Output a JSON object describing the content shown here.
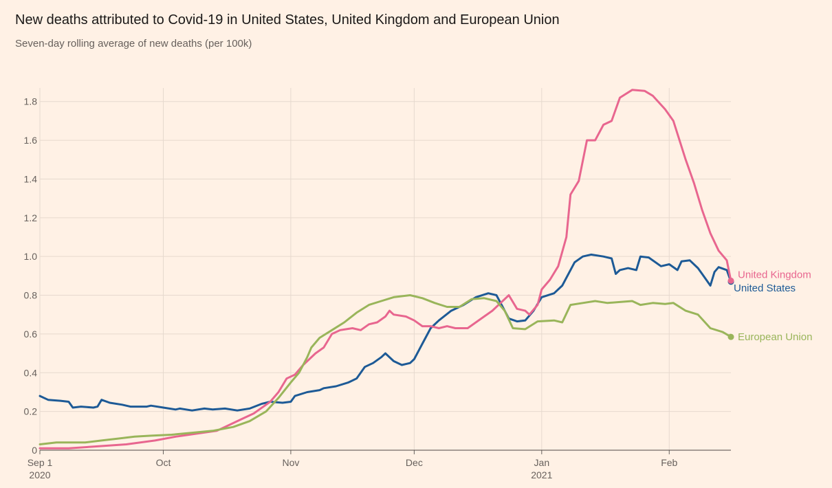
{
  "title": "New deaths attributed to Covid-19 in United States, United Kingdom and European Union",
  "subtitle": "Seven-day rolling average of new deaths (per 100k)",
  "chart_data": {
    "type": "line",
    "x_start": "2020-09-01",
    "x_end": "2021-02-16",
    "ylim": [
      0,
      1.87
    ],
    "yticks": [
      0,
      0.2,
      0.4,
      0.6,
      0.8,
      1.0,
      1.2,
      1.4,
      1.6,
      1.8
    ],
    "ytick_labels": [
      "0",
      "0.2",
      "0.4",
      "0.6",
      "0.8",
      "1.0",
      "1.2",
      "1.4",
      "1.6",
      "1.8"
    ],
    "xticks": [
      {
        "date": "2020-09-01",
        "label": "Sep 1",
        "sublabel": "2020"
      },
      {
        "date": "2020-10-01",
        "label": "Oct",
        "sublabel": ""
      },
      {
        "date": "2020-11-01",
        "label": "Nov",
        "sublabel": ""
      },
      {
        "date": "2020-12-01",
        "label": "Dec",
        "sublabel": ""
      },
      {
        "date": "2021-01-01",
        "label": "Jan",
        "sublabel": "2021"
      },
      {
        "date": "2021-02-01",
        "label": "Feb",
        "sublabel": ""
      }
    ],
    "grid": true,
    "colors": {
      "United States": "#1d5a96",
      "United Kingdom": "#e8668f",
      "European Union": "#99b55a"
    },
    "series": [
      {
        "name": "United States",
        "points": [
          [
            "2020-09-01",
            0.28
          ],
          [
            "2020-09-03",
            0.26
          ],
          [
            "2020-09-06",
            0.255
          ],
          [
            "2020-09-08",
            0.25
          ],
          [
            "2020-09-09",
            0.22
          ],
          [
            "2020-09-11",
            0.225
          ],
          [
            "2020-09-14",
            0.22
          ],
          [
            "2020-09-15",
            0.225
          ],
          [
            "2020-09-16",
            0.26
          ],
          [
            "2020-09-18",
            0.245
          ],
          [
            "2020-09-21",
            0.235
          ],
          [
            "2020-09-23",
            0.225
          ],
          [
            "2020-09-27",
            0.225
          ],
          [
            "2020-09-28",
            0.23
          ],
          [
            "2020-10-01",
            0.22
          ],
          [
            "2020-10-04",
            0.21
          ],
          [
            "2020-10-05",
            0.215
          ],
          [
            "2020-10-08",
            0.205
          ],
          [
            "2020-10-11",
            0.215
          ],
          [
            "2020-10-13",
            0.21
          ],
          [
            "2020-10-16",
            0.215
          ],
          [
            "2020-10-19",
            0.205
          ],
          [
            "2020-10-22",
            0.215
          ],
          [
            "2020-10-25",
            0.24
          ],
          [
            "2020-10-27",
            0.25
          ],
          [
            "2020-10-30",
            0.245
          ],
          [
            "2020-11-01",
            0.25
          ],
          [
            "2020-11-02",
            0.28
          ],
          [
            "2020-11-05",
            0.3
          ],
          [
            "2020-11-08",
            0.31
          ],
          [
            "2020-11-09",
            0.32
          ],
          [
            "2020-11-12",
            0.33
          ],
          [
            "2020-11-15",
            0.35
          ],
          [
            "2020-11-17",
            0.37
          ],
          [
            "2020-11-19",
            0.43
          ],
          [
            "2020-11-21",
            0.45
          ],
          [
            "2020-11-23",
            0.48
          ],
          [
            "2020-11-24",
            0.5
          ],
          [
            "2020-11-26",
            0.46
          ],
          [
            "2020-11-28",
            0.44
          ],
          [
            "2020-11-30",
            0.45
          ],
          [
            "2020-12-01",
            0.47
          ],
          [
            "2020-12-03",
            0.55
          ],
          [
            "2020-12-05",
            0.63
          ],
          [
            "2020-12-07",
            0.67
          ],
          [
            "2020-12-10",
            0.72
          ],
          [
            "2020-12-13",
            0.75
          ],
          [
            "2020-12-16",
            0.79
          ],
          [
            "2020-12-19",
            0.81
          ],
          [
            "2020-12-21",
            0.8
          ],
          [
            "2020-12-23",
            0.72
          ],
          [
            "2020-12-24",
            0.68
          ],
          [
            "2020-12-26",
            0.665
          ],
          [
            "2020-12-28",
            0.67
          ],
          [
            "2020-12-30",
            0.72
          ],
          [
            "2021-01-01",
            0.79
          ],
          [
            "2021-01-04",
            0.81
          ],
          [
            "2021-01-06",
            0.85
          ],
          [
            "2021-01-09",
            0.97
          ],
          [
            "2021-01-11",
            1.0
          ],
          [
            "2021-01-13",
            1.01
          ],
          [
            "2021-01-16",
            1.0
          ],
          [
            "2021-01-18",
            0.99
          ],
          [
            "2021-01-19",
            0.91
          ],
          [
            "2021-01-20",
            0.93
          ],
          [
            "2021-01-22",
            0.94
          ],
          [
            "2021-01-24",
            0.93
          ],
          [
            "2021-01-25",
            1.0
          ],
          [
            "2021-01-27",
            0.995
          ],
          [
            "2021-01-30",
            0.95
          ],
          [
            "2021-02-01",
            0.96
          ],
          [
            "2021-02-03",
            0.93
          ],
          [
            "2021-02-04",
            0.975
          ],
          [
            "2021-02-06",
            0.98
          ],
          [
            "2021-02-08",
            0.94
          ],
          [
            "2021-02-09",
            0.91
          ],
          [
            "2021-02-11",
            0.85
          ],
          [
            "2021-02-12",
            0.92
          ],
          [
            "2021-02-13",
            0.945
          ],
          [
            "2021-02-15",
            0.93
          ],
          [
            "2021-02-16",
            0.87
          ]
        ]
      },
      {
        "name": "United Kingdom",
        "points": [
          [
            "2020-09-01",
            0.01
          ],
          [
            "2020-09-08",
            0.01
          ],
          [
            "2020-09-15",
            0.02
          ],
          [
            "2020-09-22",
            0.03
          ],
          [
            "2020-09-29",
            0.05
          ],
          [
            "2020-10-04",
            0.07
          ],
          [
            "2020-10-09",
            0.085
          ],
          [
            "2020-10-14",
            0.1
          ],
          [
            "2020-10-17",
            0.13
          ],
          [
            "2020-10-20",
            0.16
          ],
          [
            "2020-10-23",
            0.19
          ],
          [
            "2020-10-27",
            0.25
          ],
          [
            "2020-10-29",
            0.3
          ],
          [
            "2020-10-31",
            0.37
          ],
          [
            "2020-11-02",
            0.39
          ],
          [
            "2020-11-04",
            0.44
          ],
          [
            "2020-11-07",
            0.5
          ],
          [
            "2020-11-09",
            0.53
          ],
          [
            "2020-11-11",
            0.6
          ],
          [
            "2020-11-13",
            0.62
          ],
          [
            "2020-11-16",
            0.63
          ],
          [
            "2020-11-18",
            0.62
          ],
          [
            "2020-11-20",
            0.65
          ],
          [
            "2020-11-22",
            0.66
          ],
          [
            "2020-11-24",
            0.69
          ],
          [
            "2020-11-25",
            0.72
          ],
          [
            "2020-11-26",
            0.7
          ],
          [
            "2020-11-29",
            0.69
          ],
          [
            "2020-12-01",
            0.67
          ],
          [
            "2020-12-03",
            0.64
          ],
          [
            "2020-12-05",
            0.64
          ],
          [
            "2020-12-07",
            0.63
          ],
          [
            "2020-12-09",
            0.64
          ],
          [
            "2020-12-11",
            0.63
          ],
          [
            "2020-12-14",
            0.63
          ],
          [
            "2020-12-16",
            0.66
          ],
          [
            "2020-12-18",
            0.69
          ],
          [
            "2020-12-20",
            0.72
          ],
          [
            "2020-12-22",
            0.76
          ],
          [
            "2020-12-24",
            0.8
          ],
          [
            "2020-12-26",
            0.73
          ],
          [
            "2020-12-28",
            0.72
          ],
          [
            "2020-12-29",
            0.7
          ],
          [
            "2020-12-31",
            0.75
          ],
          [
            "2021-01-01",
            0.83
          ],
          [
            "2021-01-03",
            0.88
          ],
          [
            "2021-01-05",
            0.95
          ],
          [
            "2021-01-07",
            1.1
          ],
          [
            "2021-01-08",
            1.32
          ],
          [
            "2021-01-10",
            1.39
          ],
          [
            "2021-01-12",
            1.6
          ],
          [
            "2021-01-14",
            1.6
          ],
          [
            "2021-01-16",
            1.68
          ],
          [
            "2021-01-18",
            1.7
          ],
          [
            "2021-01-20",
            1.82
          ],
          [
            "2021-01-23",
            1.86
          ],
          [
            "2021-01-26",
            1.855
          ],
          [
            "2021-01-28",
            1.83
          ],
          [
            "2021-01-31",
            1.76
          ],
          [
            "2021-02-02",
            1.7
          ],
          [
            "2021-02-05",
            1.5
          ],
          [
            "2021-02-07",
            1.38
          ],
          [
            "2021-02-09",
            1.24
          ],
          [
            "2021-02-11",
            1.12
          ],
          [
            "2021-02-13",
            1.03
          ],
          [
            "2021-02-15",
            0.98
          ],
          [
            "2021-02-16",
            0.875
          ]
        ]
      },
      {
        "name": "European Union",
        "points": [
          [
            "2020-09-01",
            0.03
          ],
          [
            "2020-09-05",
            0.04
          ],
          [
            "2020-09-12",
            0.04
          ],
          [
            "2020-09-16",
            0.05
          ],
          [
            "2020-09-20",
            0.06
          ],
          [
            "2020-09-24",
            0.07
          ],
          [
            "2020-09-28",
            0.075
          ],
          [
            "2020-10-03",
            0.08
          ],
          [
            "2020-10-08",
            0.09
          ],
          [
            "2020-10-13",
            0.1
          ],
          [
            "2020-10-18",
            0.12
          ],
          [
            "2020-10-22",
            0.15
          ],
          [
            "2020-10-26",
            0.2
          ],
          [
            "2020-10-29",
            0.27
          ],
          [
            "2020-11-01",
            0.35
          ],
          [
            "2020-11-03",
            0.4
          ],
          [
            "2020-11-05",
            0.48
          ],
          [
            "2020-11-06",
            0.53
          ],
          [
            "2020-11-08",
            0.58
          ],
          [
            "2020-11-11",
            0.62
          ],
          [
            "2020-11-14",
            0.66
          ],
          [
            "2020-11-17",
            0.71
          ],
          [
            "2020-11-20",
            0.75
          ],
          [
            "2020-11-23",
            0.77
          ],
          [
            "2020-11-26",
            0.79
          ],
          [
            "2020-11-30",
            0.8
          ],
          [
            "2020-12-03",
            0.785
          ],
          [
            "2020-12-06",
            0.76
          ],
          [
            "2020-12-09",
            0.74
          ],
          [
            "2020-12-12",
            0.74
          ],
          [
            "2020-12-15",
            0.78
          ],
          [
            "2020-12-18",
            0.785
          ],
          [
            "2020-12-21",
            0.77
          ],
          [
            "2020-12-23",
            0.72
          ],
          [
            "2020-12-25",
            0.63
          ],
          [
            "2020-12-28",
            0.625
          ],
          [
            "2020-12-31",
            0.665
          ],
          [
            "2021-01-04",
            0.67
          ],
          [
            "2021-01-06",
            0.66
          ],
          [
            "2021-01-08",
            0.75
          ],
          [
            "2021-01-11",
            0.76
          ],
          [
            "2021-01-14",
            0.77
          ],
          [
            "2021-01-17",
            0.76
          ],
          [
            "2021-01-20",
            0.765
          ],
          [
            "2021-01-23",
            0.77
          ],
          [
            "2021-01-25",
            0.75
          ],
          [
            "2021-01-28",
            0.76
          ],
          [
            "2021-01-31",
            0.755
          ],
          [
            "2021-02-02",
            0.76
          ],
          [
            "2021-02-05",
            0.72
          ],
          [
            "2021-02-08",
            0.7
          ],
          [
            "2021-02-11",
            0.63
          ],
          [
            "2021-02-14",
            0.61
          ],
          [
            "2021-02-16",
            0.585
          ]
        ]
      }
    ]
  }
}
